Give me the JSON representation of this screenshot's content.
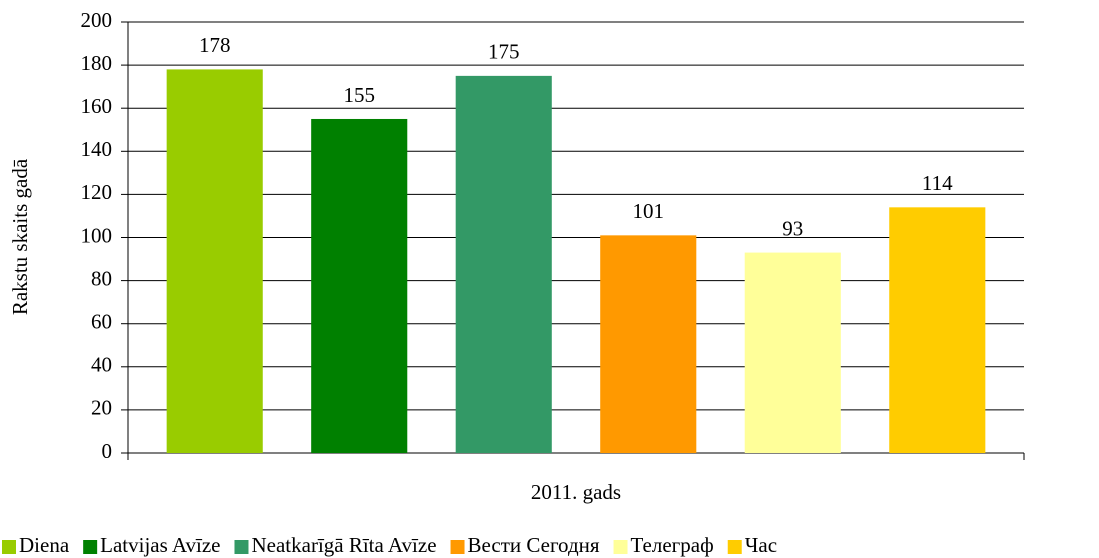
{
  "chart_data": {
    "type": "bar",
    "categories": [
      "2011. gads"
    ],
    "y_label": "Rakstu skaits gadā",
    "series": [
      {
        "name": "Diena",
        "color": "#99cc00",
        "values": [
          178
        ]
      },
      {
        "name": "Latvijas Avīze",
        "color": "#008000",
        "values": [
          155
        ]
      },
      {
        "name": "Neatkarīgā Rīta Avīze",
        "color": "#339966",
        "values": [
          175
        ]
      },
      {
        "name": "Вести Сегодня",
        "color": "#ff9900",
        "values": [
          101
        ]
      },
      {
        "name": "Телеграф",
        "color": "#ffff99",
        "values": [
          93
        ]
      },
      {
        "name": "Час",
        "color": "#ffcc00",
        "values": [
          114
        ]
      }
    ],
    "ylim": [
      0,
      200
    ],
    "yticks": [
      0,
      20,
      40,
      60,
      80,
      100,
      120,
      140,
      160,
      180,
      200
    ],
    "grid": true,
    "legend": "bottom"
  }
}
